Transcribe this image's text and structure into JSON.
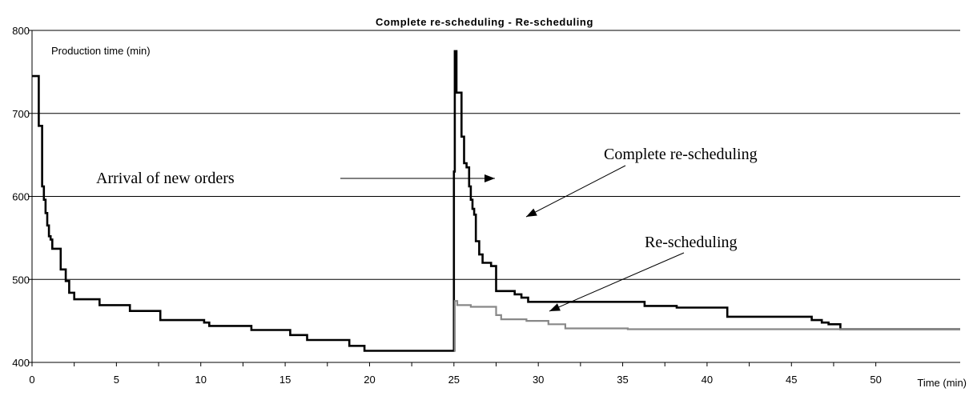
{
  "chart_data": {
    "type": "line",
    "title": "Complete re-scheduling - Re-scheduling",
    "ylabel": "Production time (min)",
    "xlabel": "Time (min)",
    "xlim": [
      0,
      55
    ],
    "ylim": [
      400,
      800
    ],
    "xticks": [
      0,
      5,
      10,
      15,
      20,
      25,
      30,
      35,
      40,
      45,
      50
    ],
    "yticks": [
      400,
      500,
      600,
      700,
      800
    ],
    "grid": "horizontal",
    "legend": "none",
    "series": [
      {
        "name": "Complete re-scheduling",
        "color": "#000000",
        "step": true,
        "points": [
          [
            0.0,
            745
          ],
          [
            0.4,
            745
          ],
          [
            0.4,
            685
          ],
          [
            0.6,
            685
          ],
          [
            0.6,
            612
          ],
          [
            0.7,
            612
          ],
          [
            0.7,
            596
          ],
          [
            0.8,
            596
          ],
          [
            0.8,
            580
          ],
          [
            0.9,
            580
          ],
          [
            0.9,
            565
          ],
          [
            1.0,
            565
          ],
          [
            1.0,
            552
          ],
          [
            1.1,
            552
          ],
          [
            1.1,
            548
          ],
          [
            1.2,
            548
          ],
          [
            1.2,
            537
          ],
          [
            1.7,
            537
          ],
          [
            1.7,
            512
          ],
          [
            2.0,
            512
          ],
          [
            2.0,
            498
          ],
          [
            2.2,
            498
          ],
          [
            2.2,
            484
          ],
          [
            2.5,
            484
          ],
          [
            2.5,
            476
          ],
          [
            3.3,
            476
          ],
          [
            3.3,
            476
          ],
          [
            4.0,
            476
          ],
          [
            4.0,
            469
          ],
          [
            5.8,
            469
          ],
          [
            5.8,
            462
          ],
          [
            7.6,
            462
          ],
          [
            7.6,
            451
          ],
          [
            10.2,
            451
          ],
          [
            10.2,
            448
          ],
          [
            10.5,
            448
          ],
          [
            10.5,
            444
          ],
          [
            13.0,
            444
          ],
          [
            13.0,
            439
          ],
          [
            15.3,
            439
          ],
          [
            15.3,
            433
          ],
          [
            16.3,
            433
          ],
          [
            16.3,
            427
          ],
          [
            18.8,
            427
          ],
          [
            18.8,
            420
          ],
          [
            19.7,
            420
          ],
          [
            19.7,
            414
          ],
          [
            25.0,
            414
          ],
          [
            25.0,
            630
          ],
          [
            25.05,
            630
          ],
          [
            25.05,
            775
          ],
          [
            25.15,
            775
          ],
          [
            25.15,
            725
          ],
          [
            25.45,
            725
          ],
          [
            25.45,
            672
          ],
          [
            25.6,
            672
          ],
          [
            25.6,
            640
          ],
          [
            25.75,
            640
          ],
          [
            25.75,
            635
          ],
          [
            25.9,
            635
          ],
          [
            25.9,
            612
          ],
          [
            26.0,
            612
          ],
          [
            26.0,
            596
          ],
          [
            26.1,
            596
          ],
          [
            26.1,
            585
          ],
          [
            26.2,
            585
          ],
          [
            26.2,
            578
          ],
          [
            26.3,
            578
          ],
          [
            26.3,
            546
          ],
          [
            26.5,
            546
          ],
          [
            26.5,
            530
          ],
          [
            26.7,
            530
          ],
          [
            26.7,
            520
          ],
          [
            27.2,
            520
          ],
          [
            27.2,
            516
          ],
          [
            27.5,
            516
          ],
          [
            27.5,
            486
          ],
          [
            28.6,
            486
          ],
          [
            28.6,
            482
          ],
          [
            29.0,
            482
          ],
          [
            29.0,
            478
          ],
          [
            29.4,
            478
          ],
          [
            29.4,
            473
          ],
          [
            36.3,
            473
          ],
          [
            36.3,
            468
          ],
          [
            38.2,
            468
          ],
          [
            38.2,
            466
          ],
          [
            41.2,
            466
          ],
          [
            41.2,
            455
          ],
          [
            46.2,
            455
          ],
          [
            46.2,
            451
          ],
          [
            46.8,
            451
          ],
          [
            46.8,
            448
          ],
          [
            47.2,
            448
          ],
          [
            47.2,
            446
          ],
          [
            47.9,
            446
          ],
          [
            47.9,
            440
          ],
          [
            55.0,
            440
          ]
        ]
      },
      {
        "name": "Re-scheduling",
        "color": "#888888",
        "step": true,
        "points": [
          [
            25.0,
            414
          ],
          [
            25.05,
            414
          ],
          [
            25.05,
            474
          ],
          [
            25.2,
            474
          ],
          [
            25.2,
            469
          ],
          [
            26.0,
            469
          ],
          [
            26.0,
            467
          ],
          [
            27.5,
            467
          ],
          [
            27.5,
            457
          ],
          [
            27.8,
            457
          ],
          [
            27.8,
            452
          ],
          [
            29.3,
            452
          ],
          [
            29.3,
            450
          ],
          [
            30.6,
            450
          ],
          [
            30.6,
            446
          ],
          [
            31.6,
            446
          ],
          [
            31.6,
            441
          ],
          [
            35.3,
            441
          ],
          [
            35.3,
            440
          ],
          [
            55.0,
            440
          ]
        ]
      }
    ],
    "annotations": [
      {
        "text": "Arrival of new orders"
      },
      {
        "text": "Complete re-scheduling"
      },
      {
        "text": "Re-scheduling"
      }
    ]
  }
}
